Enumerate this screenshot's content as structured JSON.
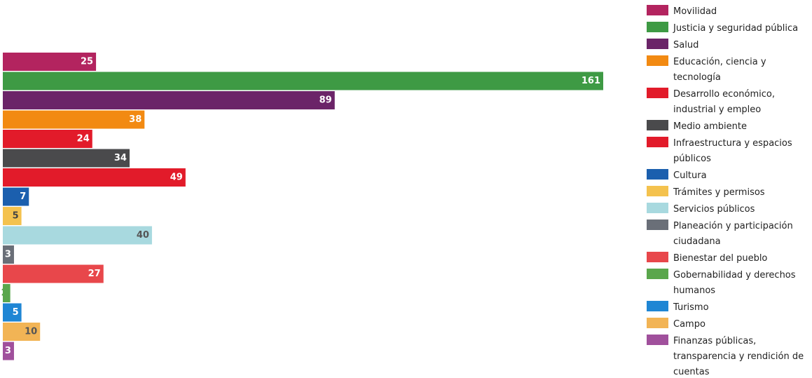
{
  "chart_data": {
    "type": "bar",
    "orientation": "horizontal",
    "title": "",
    "xlabel": "",
    "ylabel": "",
    "grid": false,
    "legend_position": "right",
    "categories": [
      "Movilidad",
      "Justicia y seguridad pública",
      "Salud",
      "Educación, ciencia y tecnología",
      "Desarrollo económico, industrial y empleo",
      "Medio ambiente",
      "Infraestructura y espacios públicos",
      "Cultura",
      "Trámites y permisos",
      "Servicios públicos",
      "Planeación y participación ciudadana",
      "Bienestar del pueblo",
      "Gobernabilidad y derechos humanos",
      "Turismo",
      "Campo",
      "Finanzas públicas, transparencia y rendición de cuentas"
    ],
    "legend_lines": [
      [
        "Movilidad"
      ],
      [
        "Justicia y seguridad pública"
      ],
      [
        "Salud"
      ],
      [
        "Educación, ciencia y",
        "tecnología"
      ],
      [
        "Desarrollo económico,",
        "industrial y empleo"
      ],
      [
        "Medio ambiente"
      ],
      [
        "Infraestructura y espacios",
        "públicos"
      ],
      [
        "Cultura"
      ],
      [
        "Trámites y permisos"
      ],
      [
        "Servicios públicos"
      ],
      [
        "Planeación y participación",
        "ciudadana"
      ],
      [
        "Bienestar del pueblo"
      ],
      [
        "Gobernabilidad y derechos",
        "humanos"
      ],
      [
        "Turismo"
      ],
      [
        "Campo"
      ],
      [
        "Finanzas públicas,",
        "transparencia y rendición de",
        "cuentas"
      ]
    ],
    "values": [
      25,
      161,
      89,
      38,
      24,
      34,
      49,
      7,
      5,
      40,
      3,
      27,
      2,
      5,
      10,
      3
    ],
    "labels": [
      "25",
      "161",
      "89",
      "38",
      "24",
      "34",
      "49",
      "7",
      "5",
      "40",
      "3",
      "27",
      "2",
      "5",
      "10",
      "3"
    ],
    "colors": [
      "#b3245f",
      "#3e9a44",
      "#6b2468",
      "#f28a12",
      "#e21b2a",
      "#4a4a4c",
      "#e21b2a",
      "#1b5fae",
      "#f4c24e",
      "#a8d9df",
      "#6a6f78",
      "#e8474b",
      "#5aa64c",
      "#1f86d4",
      "#f2b455",
      "#a0509c"
    ],
    "label_colors": [
      "#ffffff",
      "#ffffff",
      "#ffffff",
      "#ffffff",
      "#ffffff",
      "#ffffff",
      "#ffffff",
      "#ffffff",
      "#444444",
      "#555555",
      "#ffffff",
      "#ffffff",
      "#5aa64c",
      "#ffffff",
      "#555555",
      "#ffffff"
    ],
    "xlim": [
      0,
      161
    ]
  }
}
